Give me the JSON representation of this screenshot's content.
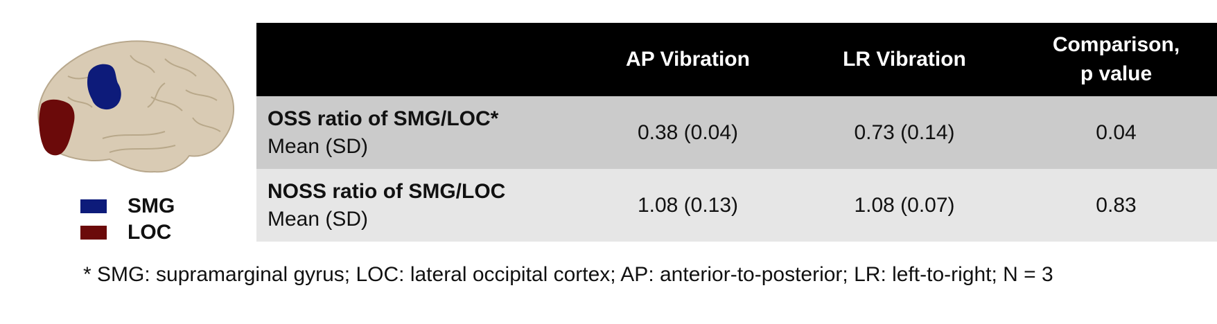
{
  "legend": [
    {
      "label": "SMG",
      "color": "#0d1b7a"
    },
    {
      "label": "LOC",
      "color": "#6b0a0a"
    }
  ],
  "table": {
    "headers": [
      "",
      "AP Vibration",
      "LR Vibration",
      "Comparison,\np value"
    ],
    "rows": [
      {
        "title": "OSS ratio of SMG/LOC*",
        "subtitle": "Mean (SD)",
        "ap": "0.38 (0.04)",
        "lr": "0.73 (0.14)",
        "p": "0.04"
      },
      {
        "title": "NOSS ratio of SMG/LOC",
        "subtitle": "Mean (SD)",
        "ap": "1.08 (0.13)",
        "lr": "1.08 (0.07)",
        "p": "0.83"
      }
    ]
  },
  "footnote": "* SMG: supramarginal gyrus; LOC: lateral occipital cortex; AP: anterior-to-posterior; LR: left-to-right; N = 3",
  "colors": {
    "header_bg": "#000000",
    "row1_bg": "#cbcbcb",
    "row2_bg": "#e6e6e6",
    "brain": "#d9cbb4"
  }
}
